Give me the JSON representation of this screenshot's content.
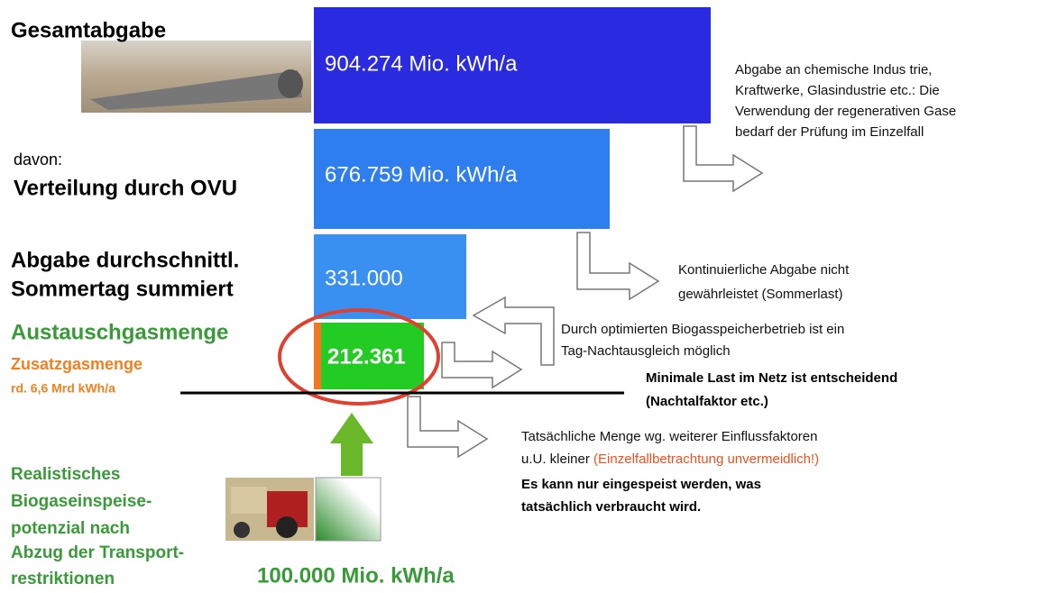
{
  "left": {
    "total_label": "Gesamtabgabe",
    "davon": "davon:",
    "distribution_label": "Verteilung durch OVU",
    "summer_label": [
      "Abgabe durchschnittl.",
      "Sommertag summiert"
    ],
    "exchange_label": "Austauschgasmenge",
    "additional_label": "Zusatzgasmenge",
    "additional_amount": "rd. 6,6 Mrd kWh/a",
    "potential_label": [
      "Realistisches",
      "Biogaseinspeise-",
      "potenzial nach",
      "Abzug der Transport-",
      "restriktionen"
    ],
    "potential_amount": "100.000 Mio. kWh/a"
  },
  "boxes": [
    "904.274 Mio. kWh/a",
    "676.759 Mio. kWh/a",
    "331.000",
    "212.361"
  ],
  "notes": {
    "industry": [
      "Abgabe an chemische Indus trie,",
      "Kraftwerke,  Glasindustrie etc.: Die",
      "Verwendung der regenerativen Gase",
      "bedarf der  Prüfung im Einzelfall"
    ],
    "continuous": [
      "Kontinuierliche  Abgabe nicht",
      "gewährleistet  (Sommerlast)"
    ],
    "storage": [
      "Durch optimierten Biogasspeicherbetrieb ist ein",
      "Tag-Nachtausgleich möglich"
    ],
    "minimal_load": [
      "Minimale Last im Netz ist  entscheidend",
      "(Nachtalfaktor etc.)"
    ],
    "actual": [
      "Tatsächliche Menge  wg.  weiterer  Einflussfaktoren",
      "u.U. kleiner ",
      "(Einzelfallbetrachtung  unvermeidlich!)"
    ],
    "conclusion": [
      "Es kann nur eingespeist werden, was",
      "tatsächlich verbraucht wird."
    ]
  }
}
